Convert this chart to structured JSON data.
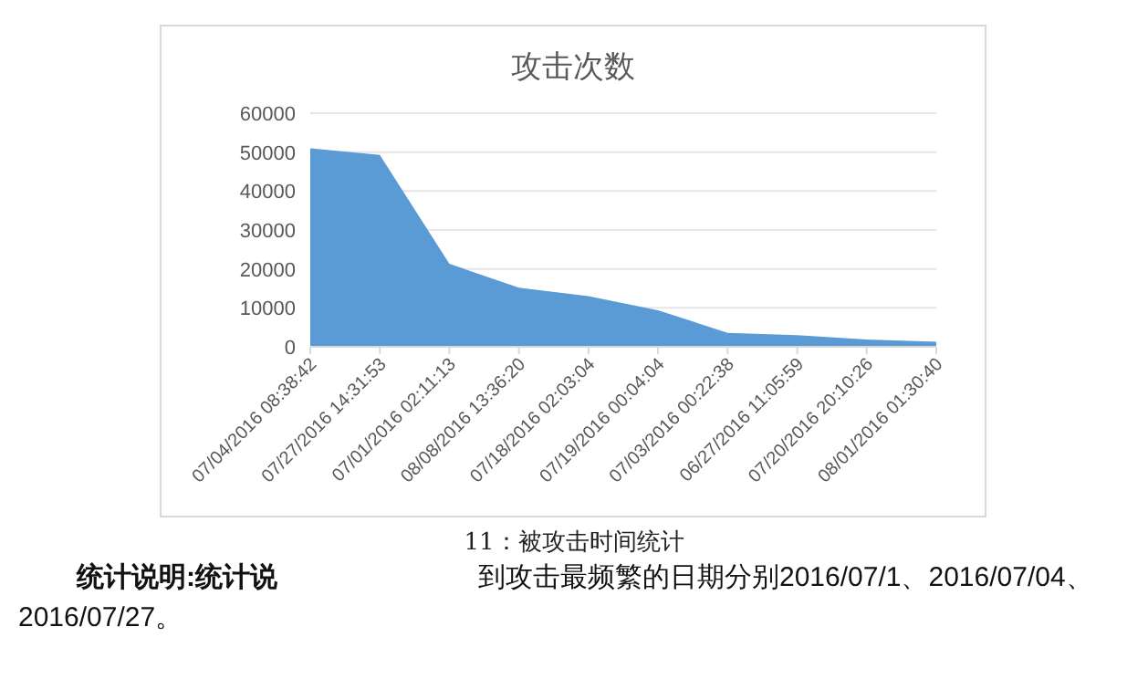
{
  "chart_data": {
    "type": "area",
    "title": "攻击次数",
    "categories": [
      "07/04/2016 08:38:42",
      "07/27/2016 14:31:53",
      "07/01/2016 02:11:13",
      "08/08/2016 13:36:20",
      "07/18/2016 02:03:04",
      "07/19/2016 00:04:04",
      "07/03/2016 00:22:38",
      "06/27/2016 11:05:59",
      "07/20/2016 20:10:26",
      "08/01/2016 01:30:40"
    ],
    "series": [
      {
        "color": "#5b9bd5",
        "values": [
          51000,
          49300,
          21300,
          15200,
          13000,
          9400,
          3600,
          3000,
          1900,
          1300
        ]
      }
    ],
    "ylim": [
      0,
      60000
    ],
    "yticks": [
      0,
      10000,
      20000,
      30000,
      40000,
      50000,
      60000
    ],
    "grid": "y",
    "annotations": [
      "11：被攻击时间统计",
      "统计说明:统计说",
      "到攻击最频繁的日期分别2016/07/1、2016/07/04、2016/07/27。"
    ]
  }
}
